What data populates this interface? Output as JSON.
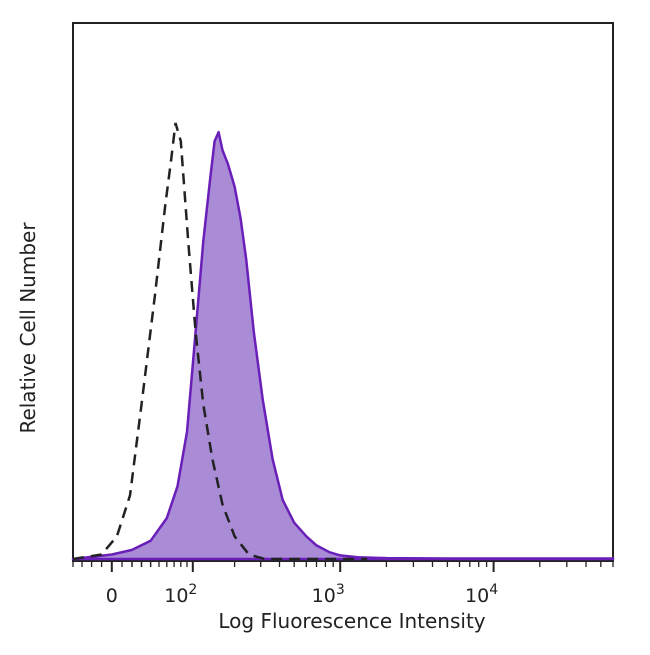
{
  "chart_data": {
    "type": "area",
    "title": "",
    "xlabel": "Log Fluorescence Intensity",
    "ylabel": "Relative Cell Number",
    "x_scale": "biexponential (log)",
    "x_ticks": [
      {
        "value": 0,
        "base": "0",
        "exp": ""
      },
      {
        "value": 100,
        "base": "10",
        "exp": "2"
      },
      {
        "value": 1000,
        "base": "10",
        "exp": "3"
      },
      {
        "value": 10000,
        "base": "10",
        "exp": "4"
      }
    ],
    "xlim": [
      -40,
      60000
    ],
    "ylim": [
      0,
      1
    ],
    "grid": false,
    "legend": "none",
    "series": [
      {
        "style": "dashed",
        "color": "#222222",
        "fill": "none",
        "x": [
          -40,
          -10,
          5,
          18,
          30,
          45,
          58,
          66,
          72,
          80,
          92,
          105,
          120,
          140,
          165,
          200,
          250,
          320,
          420,
          600,
          900,
          1500
        ],
        "y": [
          0.0,
          0.01,
          0.05,
          0.14,
          0.34,
          0.58,
          0.78,
          0.88,
          0.96,
          0.92,
          0.7,
          0.5,
          0.34,
          0.22,
          0.12,
          0.05,
          0.01,
          0.0,
          0.0,
          0.0,
          0.0,
          0.0
        ]
      },
      {
        "style": "filled",
        "color": "#6a1fb8",
        "fill": "#a98bd6",
        "x": [
          -40,
          0,
          20,
          40,
          60,
          75,
          90,
          105,
          120,
          135,
          145,
          155,
          165,
          180,
          200,
          220,
          240,
          270,
          310,
          360,
          420,
          500,
          600,
          700,
          850,
          1000,
          1300,
          2000,
          5000,
          20000,
          60000
        ],
        "y": [
          0.0,
          0.01,
          0.02,
          0.04,
          0.09,
          0.16,
          0.28,
          0.5,
          0.7,
          0.84,
          0.92,
          0.94,
          0.9,
          0.87,
          0.82,
          0.75,
          0.66,
          0.5,
          0.35,
          0.22,
          0.13,
          0.08,
          0.05,
          0.03,
          0.015,
          0.008,
          0.004,
          0.002,
          0.001,
          0.001,
          0.001
        ]
      }
    ]
  }
}
